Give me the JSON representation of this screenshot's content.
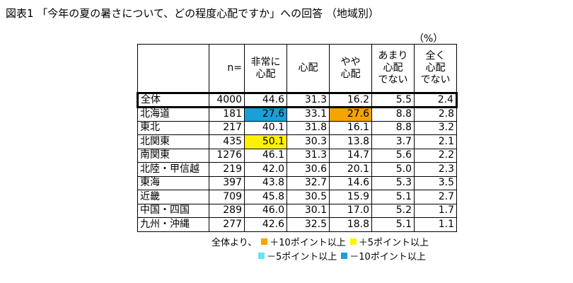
{
  "title": "図表1 「今年の夏の暑さについて、どの程度心配ですか」への回答 （地域別）",
  "unit": "（%）",
  "header": {
    "n": "n=",
    "cols": [
      [
        "非常に",
        "心配"
      ],
      [
        "心配"
      ],
      [
        "やや",
        "心配"
      ],
      [
        "あまり",
        "心配",
        "でない"
      ],
      [
        "全く",
        "心配",
        "でない"
      ]
    ]
  },
  "rows": [
    {
      "label": "全体",
      "n": "4000",
      "v": [
        "44.6",
        "31.3",
        "16.2",
        "5.5",
        "2.4"
      ],
      "hl": [
        "",
        "",
        "",
        "",
        ""
      ]
    },
    {
      "label": "北海道",
      "n": "181",
      "v": [
        "27.6",
        "33.1",
        "27.6",
        "8.8",
        "2.8"
      ],
      "hl": [
        "blue",
        "",
        "orange",
        "",
        ""
      ]
    },
    {
      "label": "東北",
      "n": "217",
      "v": [
        "40.1",
        "31.8",
        "16.1",
        "8.8",
        "3.2"
      ],
      "hl": [
        "",
        "",
        "",
        "",
        ""
      ]
    },
    {
      "label": "北関東",
      "n": "435",
      "v": [
        "50.1",
        "30.3",
        "13.8",
        "3.7",
        "2.1"
      ],
      "hl": [
        "yellow",
        "",
        "",
        "",
        ""
      ]
    },
    {
      "label": "南関東",
      "n": "1276",
      "v": [
        "46.1",
        "31.3",
        "14.7",
        "5.6",
        "2.2"
      ],
      "hl": [
        "",
        "",
        "",
        "",
        ""
      ]
    },
    {
      "label": "北陸・甲信越",
      "n": "219",
      "v": [
        "42.0",
        "30.6",
        "20.1",
        "5.0",
        "2.3"
      ],
      "hl": [
        "",
        "",
        "",
        "",
        ""
      ]
    },
    {
      "label": "東海",
      "n": "397",
      "v": [
        "43.8",
        "32.7",
        "14.6",
        "5.3",
        "3.5"
      ],
      "hl": [
        "",
        "",
        "",
        "",
        ""
      ]
    },
    {
      "label": "近畿",
      "n": "709",
      "v": [
        "45.8",
        "30.5",
        "15.9",
        "5.1",
        "2.7"
      ],
      "hl": [
        "",
        "",
        "",
        "",
        ""
      ]
    },
    {
      "label": "中国・四国",
      "n": "289",
      "v": [
        "46.0",
        "30.1",
        "17.0",
        "5.2",
        "1.7"
      ],
      "hl": [
        "",
        "",
        "",
        "",
        ""
      ]
    },
    {
      "label": "九州・沖縄",
      "n": "277",
      "v": [
        "42.6",
        "32.5",
        "18.8",
        "5.1",
        "1.1"
      ],
      "hl": [
        "",
        "",
        "",
        "",
        ""
      ]
    }
  ],
  "legend": {
    "prefix": "全体より、",
    "items": [
      {
        "text": "＋10ポイント以上",
        "color": "#f4a400"
      },
      {
        "text": "＋5ポイント以上",
        "color": "#fff200"
      },
      {
        "text": "－5ポイント以上",
        "color": "#5fe6f0"
      },
      {
        "text": "－10ポイント以上",
        "color": "#1aa0d8"
      }
    ]
  }
}
